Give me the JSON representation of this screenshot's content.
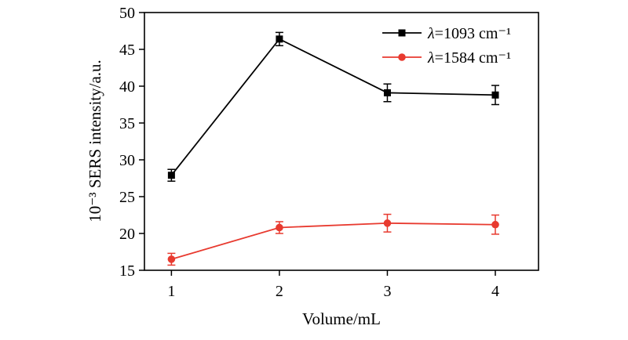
{
  "chart_data": {
    "type": "line",
    "title": "",
    "xlabel": "Volume/mL",
    "ylabel": "10⁻³ SERS intensity/a.u.",
    "x": [
      1,
      2,
      3,
      4
    ],
    "xticks": [
      "1",
      "2",
      "3",
      "4"
    ],
    "xlim": [
      0.75,
      4.4
    ],
    "ylim": [
      15,
      50
    ],
    "yticks": [
      "15",
      "20",
      "25",
      "30",
      "35",
      "40",
      "45",
      "50"
    ],
    "grid": false,
    "legend_position": "top-right",
    "series": [
      {
        "name_prefix": "λ",
        "name": "=1093 cm⁻¹",
        "color": "#000000",
        "marker": "square",
        "values": [
          27.9,
          46.4,
          39.1,
          38.8
        ],
        "errors": [
          0.8,
          0.9,
          1.2,
          1.3
        ]
      },
      {
        "name_prefix": "λ",
        "name": "=1584 cm⁻¹",
        "color": "#e83a2f",
        "marker": "circle",
        "values": [
          16.5,
          20.8,
          21.4,
          21.2
        ],
        "errors": [
          0.8,
          0.8,
          1.2,
          1.3
        ]
      }
    ]
  }
}
